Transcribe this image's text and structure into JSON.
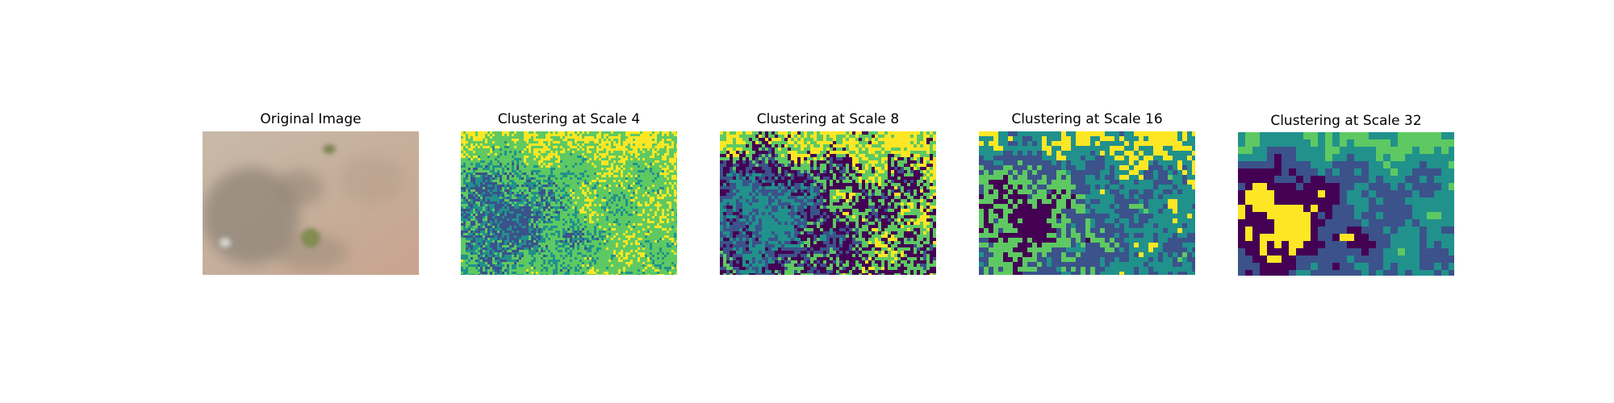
{
  "chart_data": [
    {
      "type": "image",
      "title": "Original Image",
      "palette": "photo"
    },
    {
      "type": "heatmap",
      "title": "Clustering at Scale 4",
      "scale": 4,
      "palette": "viridis"
    },
    {
      "type": "heatmap",
      "title": "Clustering at Scale 8",
      "scale": 8,
      "palette": "viridis"
    },
    {
      "type": "heatmap",
      "title": "Clustering at Scale 16",
      "scale": 16,
      "palette": "viridis"
    },
    {
      "type": "heatmap",
      "title": "Clustering at Scale 32",
      "scale": 32,
      "palette": "viridis"
    }
  ],
  "colors": {
    "viridis": [
      "#440154",
      "#3b528b",
      "#21918c",
      "#5ec962",
      "#fde725"
    ],
    "photo_base": "#c9b7a5",
    "photo_shadow": "#8f8478",
    "photo_moss": "#7d8a4a"
  }
}
